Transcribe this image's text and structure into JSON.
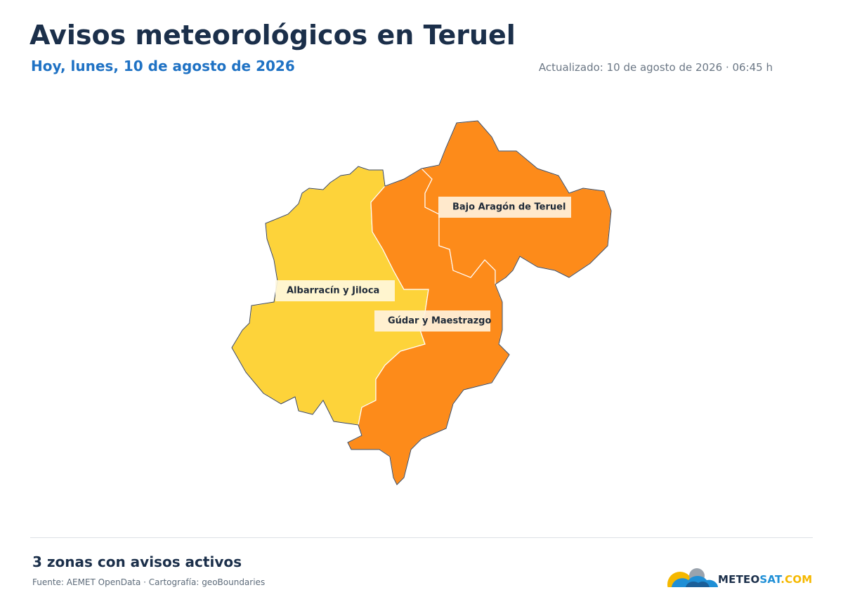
{
  "header": {
    "title": "Avisos meteorológicos en Teruel",
    "subtitle": "Hoy, lunes, 10 de agosto de 2026",
    "updated": "Actualizado: 10 de agosto de 2026 · 06:45 h"
  },
  "regions": [
    {
      "name": "Albarracín y Jiloca",
      "color": "#fdd33a"
    },
    {
      "name": "Gúdar y Maestrazgo",
      "color": "#fd8b1a"
    },
    {
      "name": "Bajo Aragón de Teruel",
      "color": "#fd8b1a"
    }
  ],
  "footer": {
    "summary": "3 zonas con avisos activos",
    "source": "Fuente: AEMET OpenData · Cartografía: geoBoundaries"
  },
  "logo": {
    "parts": [
      "METEO",
      "SAT",
      ".COM"
    ]
  }
}
